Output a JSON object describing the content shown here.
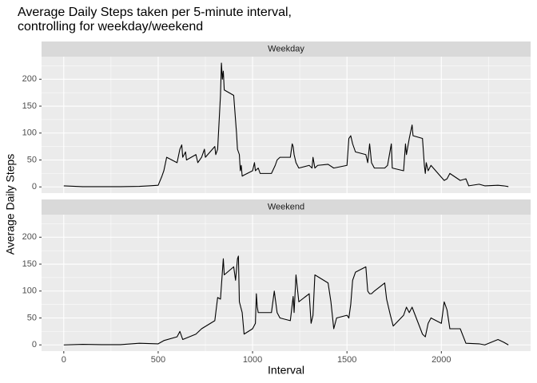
{
  "title": [
    "Average Daily Steps taken per 5-minute interval,",
    "controlling for weekday/weekend"
  ],
  "x_label": "Interval",
  "y_label": "Average Daily Steps",
  "chart_data": [
    {
      "type": "line",
      "title": "Weekday",
      "color": "#000000",
      "grid": true,
      "xlim": [
        -117.75,
        2472.75
      ],
      "ylim": [
        -11.5,
        241.9
      ],
      "xticks": [
        0,
        500,
        1000,
        1500,
        2000
      ],
      "yticks": [
        0,
        50,
        100,
        150,
        200
      ],
      "x": [
        0,
        100,
        200,
        300,
        400,
        450,
        500,
        520,
        530,
        545,
        600,
        615,
        625,
        630,
        645,
        650,
        700,
        710,
        730,
        745,
        750,
        800,
        805,
        815,
        830,
        835,
        840,
        845,
        850,
        900,
        915,
        920,
        930,
        935,
        940,
        945,
        955,
        1000,
        1010,
        1015,
        1030,
        1040,
        1100,
        1120,
        1130,
        1145,
        1200,
        1210,
        1215,
        1220,
        1230,
        1245,
        1300,
        1315,
        1320,
        1330,
        1345,
        1400,
        1430,
        1500,
        1510,
        1520,
        1530,
        1545,
        1600,
        1610,
        1620,
        1630,
        1645,
        1700,
        1715,
        1730,
        1735,
        1740,
        1800,
        1810,
        1815,
        1830,
        1845,
        1850,
        1900,
        1910,
        1915,
        1920,
        1930,
        1945,
        2000,
        2015,
        2030,
        2045,
        2100,
        2130,
        2145,
        2200,
        2230,
        2300,
        2330,
        2355
      ],
      "values": [
        2,
        0.5,
        0.5,
        0.5,
        1,
        2,
        3,
        20,
        30,
        55,
        45,
        70,
        78,
        55,
        65,
        50,
        60,
        45,
        55,
        70,
        55,
        75,
        60,
        70,
        170,
        230,
        200,
        215,
        180,
        170,
        100,
        70,
        60,
        30,
        40,
        20,
        22,
        30,
        45,
        30,
        35,
        25,
        25,
        40,
        50,
        55,
        55,
        80,
        75,
        60,
        45,
        35,
        40,
        35,
        55,
        35,
        40,
        42,
        35,
        40,
        90,
        95,
        80,
        65,
        60,
        45,
        80,
        45,
        35,
        35,
        40,
        70,
        80,
        35,
        30,
        80,
        60,
        90,
        115,
        95,
        90,
        40,
        25,
        45,
        30,
        40,
        18,
        12,
        15,
        25,
        12,
        15,
        2,
        5,
        2,
        3,
        2,
        0.5
      ]
    },
    {
      "type": "line",
      "title": "Weekend",
      "color": "#000000",
      "grid": true,
      "xlim": [
        -117.75,
        2472.75
      ],
      "ylim": [
        -11.5,
        241.9
      ],
      "xticks": [
        0,
        500,
        1000,
        1500,
        2000
      ],
      "yticks": [
        0,
        50,
        100,
        150,
        200
      ],
      "x": [
        0,
        100,
        200,
        300,
        400,
        500,
        530,
        600,
        615,
        630,
        700,
        730,
        800,
        815,
        830,
        845,
        850,
        900,
        910,
        920,
        925,
        930,
        945,
        955,
        1000,
        1015,
        1020,
        1025,
        1030,
        1100,
        1115,
        1130,
        1145,
        1200,
        1215,
        1220,
        1230,
        1245,
        1300,
        1310,
        1320,
        1330,
        1400,
        1415,
        1430,
        1445,
        1500,
        1510,
        1520,
        1530,
        1545,
        1600,
        1610,
        1620,
        1630,
        1645,
        1700,
        1710,
        1720,
        1730,
        1745,
        1800,
        1815,
        1830,
        1845,
        1900,
        1915,
        1930,
        1945,
        2000,
        2015,
        2030,
        2045,
        2100,
        2130,
        2200,
        2230,
        2300,
        2330,
        2355
      ],
      "values": [
        0,
        1,
        0.5,
        0.5,
        3,
        2,
        8,
        15,
        25,
        10,
        20,
        30,
        45,
        88,
        85,
        160,
        130,
        145,
        120,
        160,
        165,
        80,
        60,
        20,
        30,
        40,
        95,
        70,
        60,
        60,
        100,
        60,
        50,
        45,
        90,
        60,
        130,
        80,
        95,
        40,
        55,
        130,
        115,
        80,
        30,
        50,
        55,
        50,
        75,
        120,
        135,
        145,
        100,
        95,
        95,
        100,
        115,
        85,
        70,
        55,
        35,
        55,
        70,
        60,
        70,
        20,
        15,
        40,
        50,
        40,
        80,
        65,
        30,
        30,
        3,
        2,
        0,
        10,
        5,
        0
      ]
    }
  ]
}
